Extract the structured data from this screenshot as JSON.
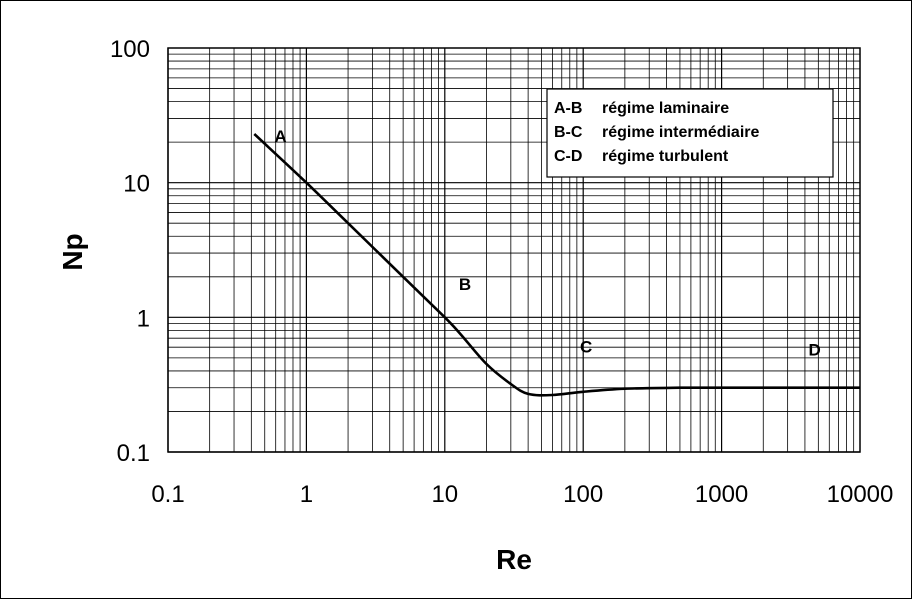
{
  "chart_data": {
    "type": "line",
    "title": "",
    "xlabel": "Re",
    "ylabel": "Np",
    "xscale": "log",
    "yscale": "log",
    "xlim": [
      0.1,
      10000
    ],
    "ylim": [
      0.1,
      100
    ],
    "grid": true,
    "x_ticks": [
      "0.1",
      "1",
      "10",
      "100",
      "1000",
      "10000"
    ],
    "y_ticks": [
      "100",
      "10",
      "1",
      "0.1"
    ],
    "series": [
      {
        "x": [
          0.42,
          1,
          2,
          5,
          10,
          13,
          20,
          30,
          40,
          60,
          100,
          200,
          500,
          1000,
          2000,
          5000,
          10000
        ],
        "y": [
          23,
          10,
          5,
          2,
          1,
          0.75,
          0.45,
          0.32,
          0.27,
          0.265,
          0.28,
          0.295,
          0.3,
          0.3,
          0.3,
          0.3,
          0.3
        ]
      }
    ],
    "annotations": [
      {
        "text": "A",
        "x": 0.65,
        "y": 20
      },
      {
        "text": "B",
        "x": 14,
        "y": 1.6
      },
      {
        "text": "C",
        "x": 105,
        "y": 0.55
      },
      {
        "text": "D",
        "x": 4700,
        "y": 0.52
      }
    ],
    "legend": {
      "placement": "top-right",
      "entries": [
        {
          "key": "A-B",
          "label": "régime laminaire"
        },
        {
          "key": "B-C",
          "label": "régime intermédiaire"
        },
        {
          "key": "C-D",
          "label": "régime turbulent"
        }
      ]
    }
  }
}
